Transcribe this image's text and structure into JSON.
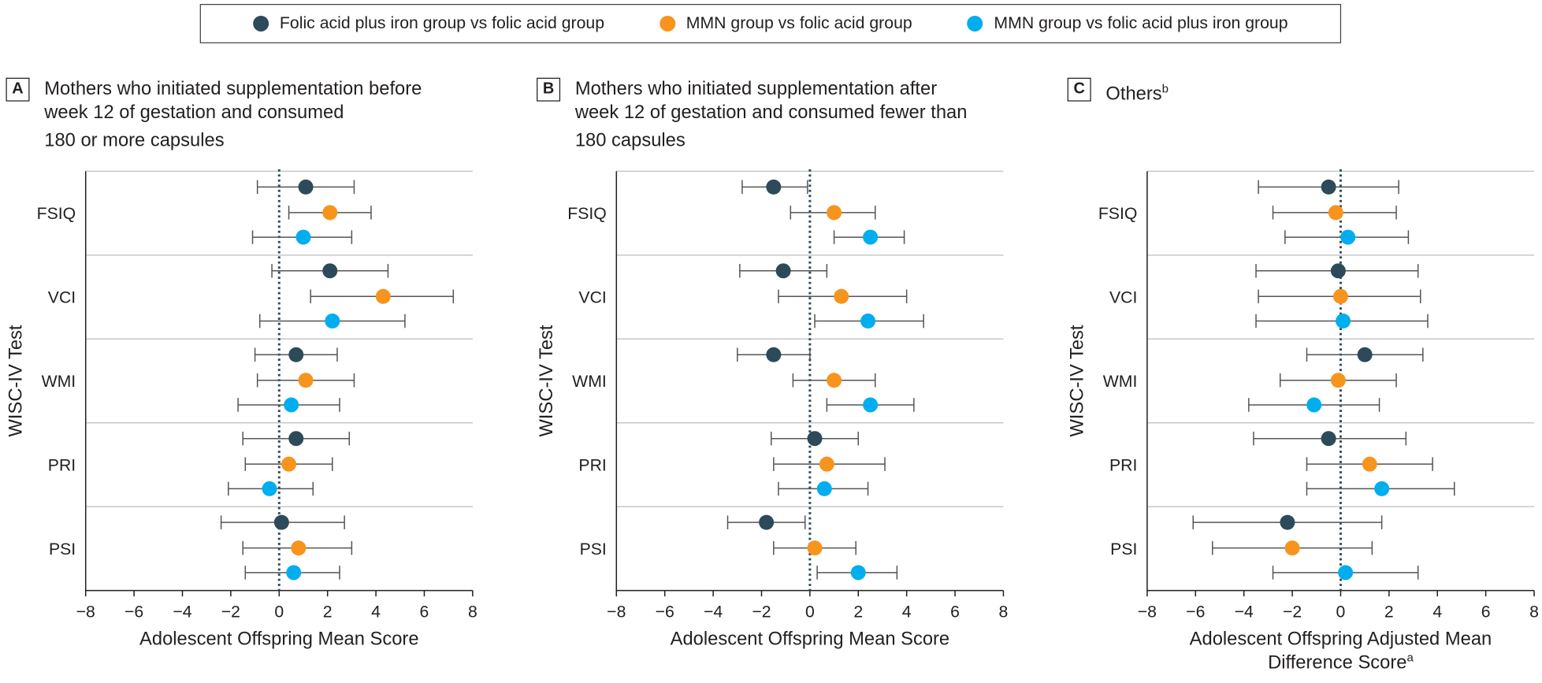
{
  "legend": {
    "series1": "Folic acid plus iron group vs folic acid group",
    "series2": "MMN group vs folic acid group",
    "series3": "MMN group vs folic acid plus iron group"
  },
  "colors": {
    "series1": "#2d4a5a",
    "series2": "#f7941d",
    "series3": "#00aeef"
  },
  "panels": [
    {
      "letter": "A",
      "title": "Mothers who initiated supplementation before\nweek 12 of gestation and consumed\n180 or more capsules",
      "title_sup": ""
    },
    {
      "letter": "B",
      "title": "Mothers who initiated supplementation after\nweek 12 of gestation and consumed fewer than\n180 capsules",
      "title_sup": ""
    },
    {
      "letter": "C",
      "title": "Others",
      "title_sup": "b"
    }
  ],
  "chart_data": [
    {
      "type": "forest",
      "panel": "A",
      "ylabel": "WISC-IV Test",
      "xlabel": "Adolescent Offspring Mean Score",
      "xlabel_sup": "",
      "xlim": [
        -8,
        8
      ],
      "xticks": [
        "−8",
        "−6",
        "−4",
        "−2",
        "0",
        "2",
        "4",
        "6",
        "8"
      ],
      "categories": [
        "FSIQ",
        "VCI",
        "WMI",
        "PRI",
        "PSI"
      ],
      "series": [
        {
          "name": "Folic acid plus iron group vs folic acid group",
          "points": [
            [
              1.1,
              -0.9,
              3.1
            ],
            [
              2.1,
              -0.3,
              4.5
            ],
            [
              0.7,
              -1.0,
              2.4
            ],
            [
              0.7,
              -1.5,
              2.9
            ],
            [
              0.1,
              -2.4,
              2.7
            ]
          ]
        },
        {
          "name": "MMN group vs folic acid group",
          "points": [
            [
              2.1,
              0.4,
              3.8
            ],
            [
              4.3,
              1.3,
              7.2
            ],
            [
              1.1,
              -0.9,
              3.1
            ],
            [
              0.4,
              -1.4,
              2.2
            ],
            [
              0.8,
              -1.5,
              3.0
            ]
          ]
        },
        {
          "name": "MMN group vs folic acid plus iron group",
          "points": [
            [
              1.0,
              -1.1,
              3.0
            ],
            [
              2.2,
              -0.8,
              5.2
            ],
            [
              0.5,
              -1.7,
              2.5
            ],
            [
              -0.4,
              -2.1,
              1.4
            ],
            [
              0.6,
              -1.4,
              2.5
            ]
          ]
        }
      ]
    },
    {
      "type": "forest",
      "panel": "B",
      "ylabel": "WISC-IV Test",
      "xlabel": "Adolescent Offspring Mean Score",
      "xlabel_sup": "",
      "xlim": [
        -8,
        8
      ],
      "xticks": [
        "−8",
        "−6",
        "−4",
        "−2",
        "0",
        "2",
        "4",
        "6",
        "8"
      ],
      "categories": [
        "FSIQ",
        "VCI",
        "WMI",
        "PRI",
        "PSI"
      ],
      "series": [
        {
          "name": "Folic acid plus iron group vs folic acid group",
          "points": [
            [
              -1.5,
              -2.8,
              -0.1
            ],
            [
              -1.1,
              -2.9,
              0.7
            ],
            [
              -1.5,
              -3.0,
              0.0
            ],
            [
              0.2,
              -1.6,
              2.0
            ],
            [
              -1.8,
              -3.4,
              -0.2
            ]
          ]
        },
        {
          "name": "MMN group vs folic acid group",
          "points": [
            [
              1.0,
              -0.8,
              2.7
            ],
            [
              1.3,
              -1.3,
              4.0
            ],
            [
              1.0,
              -0.7,
              2.7
            ],
            [
              0.7,
              -1.5,
              3.1
            ],
            [
              0.2,
              -1.5,
              1.9
            ]
          ]
        },
        {
          "name": "MMN group vs folic acid plus iron group",
          "points": [
            [
              2.5,
              1.0,
              3.9
            ],
            [
              2.4,
              0.2,
              4.7
            ],
            [
              2.5,
              0.7,
              4.3
            ],
            [
              0.6,
              -1.3,
              2.4
            ],
            [
              2.0,
              0.3,
              3.6
            ]
          ]
        }
      ]
    },
    {
      "type": "forest",
      "panel": "C",
      "ylabel": "WISC-IV Test",
      "xlabel": "Adolescent Offspring Adjusted Mean\nDifference Score",
      "xlabel_sup": "a",
      "xlim": [
        -8,
        8
      ],
      "xticks": [
        "−8",
        "−6",
        "−4",
        "−2",
        "0",
        "2",
        "4",
        "6",
        "8"
      ],
      "categories": [
        "FSIQ",
        "VCI",
        "WMI",
        "PRI",
        "PSI"
      ],
      "series": [
        {
          "name": "Folic acid plus iron group vs folic acid group",
          "points": [
            [
              -0.5,
              -3.4,
              2.4
            ],
            [
              -0.1,
              -3.5,
              3.2
            ],
            [
              1.0,
              -1.4,
              3.4
            ],
            [
              -0.5,
              -3.6,
              2.7
            ],
            [
              -2.2,
              -6.1,
              1.7
            ]
          ]
        },
        {
          "name": "MMN group vs folic acid group",
          "points": [
            [
              -0.2,
              -2.8,
              2.3
            ],
            [
              0.0,
              -3.4,
              3.3
            ],
            [
              -0.1,
              -2.5,
              2.3
            ],
            [
              1.2,
              -1.4,
              3.8
            ],
            [
              -2.0,
              -5.3,
              1.3
            ]
          ]
        },
        {
          "name": "MMN group vs folic acid plus iron group",
          "points": [
            [
              0.3,
              -2.3,
              2.8
            ],
            [
              0.1,
              -3.5,
              3.6
            ],
            [
              -1.1,
              -3.8,
              1.6
            ],
            [
              1.7,
              -1.4,
              4.7
            ],
            [
              0.2,
              -2.8,
              3.2
            ]
          ]
        }
      ]
    }
  ]
}
